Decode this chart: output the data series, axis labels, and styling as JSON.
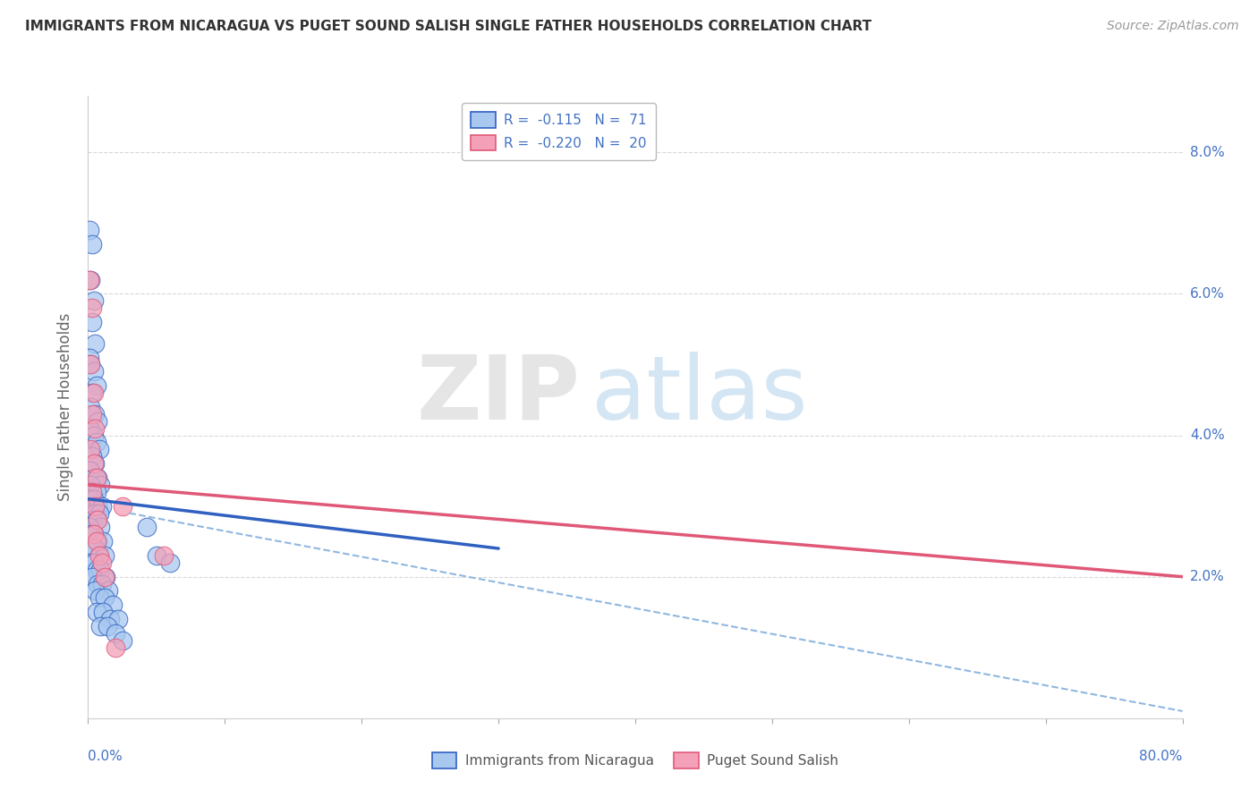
{
  "title": "IMMIGRANTS FROM NICARAGUA VS PUGET SOUND SALISH SINGLE FATHER HOUSEHOLDS CORRELATION CHART",
  "source": "Source: ZipAtlas.com",
  "ylabel": "Single Father Households",
  "legend_entry1": "R =  -0.115   N =  71",
  "legend_entry2": "R =  -0.220   N =  20",
  "legend_label1": "Immigrants from Nicaragua",
  "legend_label2": "Puget Sound Salish",
  "blue_color": "#A8C8F0",
  "pink_color": "#F4A0B8",
  "blue_line_color": "#3060C0",
  "pink_line_color": "#E05878",
  "dashed_line_color": "#90B8E0",
  "watermark_zip": "ZIP",
  "watermark_atlas": "atlas",
  "blue_dots": [
    [
      0.001,
      0.069
    ],
    [
      0.003,
      0.067
    ],
    [
      0.002,
      0.062
    ],
    [
      0.004,
      0.059
    ],
    [
      0.003,
      0.056
    ],
    [
      0.005,
      0.053
    ],
    [
      0.001,
      0.051
    ],
    [
      0.002,
      0.05
    ],
    [
      0.004,
      0.049
    ],
    [
      0.006,
      0.047
    ],
    [
      0.003,
      0.046
    ],
    [
      0.002,
      0.044
    ],
    [
      0.005,
      0.043
    ],
    [
      0.007,
      0.042
    ],
    [
      0.001,
      0.041
    ],
    [
      0.004,
      0.04
    ],
    [
      0.006,
      0.039
    ],
    [
      0.008,
      0.038
    ],
    [
      0.003,
      0.037
    ],
    [
      0.005,
      0.036
    ],
    [
      0.001,
      0.035
    ],
    [
      0.002,
      0.035
    ],
    [
      0.004,
      0.034
    ],
    [
      0.007,
      0.034
    ],
    [
      0.009,
      0.033
    ],
    [
      0.002,
      0.033
    ],
    [
      0.003,
      0.032
    ],
    [
      0.006,
      0.032
    ],
    [
      0.001,
      0.031
    ],
    [
      0.004,
      0.031
    ],
    [
      0.007,
      0.03
    ],
    [
      0.01,
      0.03
    ],
    [
      0.002,
      0.029
    ],
    [
      0.005,
      0.029
    ],
    [
      0.008,
      0.029
    ],
    [
      0.003,
      0.028
    ],
    [
      0.006,
      0.028
    ],
    [
      0.009,
      0.027
    ],
    [
      0.001,
      0.027
    ],
    [
      0.002,
      0.026
    ],
    [
      0.004,
      0.026
    ],
    [
      0.007,
      0.025
    ],
    [
      0.011,
      0.025
    ],
    [
      0.003,
      0.024
    ],
    [
      0.005,
      0.024
    ],
    [
      0.008,
      0.023
    ],
    [
      0.012,
      0.023
    ],
    [
      0.002,
      0.022
    ],
    [
      0.004,
      0.022
    ],
    [
      0.006,
      0.021
    ],
    [
      0.009,
      0.021
    ],
    [
      0.013,
      0.02
    ],
    [
      0.003,
      0.02
    ],
    [
      0.007,
      0.019
    ],
    [
      0.01,
      0.019
    ],
    [
      0.015,
      0.018
    ],
    [
      0.005,
      0.018
    ],
    [
      0.008,
      0.017
    ],
    [
      0.012,
      0.017
    ],
    [
      0.018,
      0.016
    ],
    [
      0.006,
      0.015
    ],
    [
      0.011,
      0.015
    ],
    [
      0.016,
      0.014
    ],
    [
      0.022,
      0.014
    ],
    [
      0.009,
      0.013
    ],
    [
      0.014,
      0.013
    ],
    [
      0.02,
      0.012
    ],
    [
      0.025,
      0.011
    ],
    [
      0.043,
      0.027
    ],
    [
      0.05,
      0.023
    ],
    [
      0.06,
      0.022
    ]
  ],
  "pink_dots": [
    [
      0.001,
      0.062
    ],
    [
      0.003,
      0.058
    ],
    [
      0.002,
      0.05
    ],
    [
      0.004,
      0.046
    ],
    [
      0.003,
      0.043
    ],
    [
      0.005,
      0.041
    ],
    [
      0.002,
      0.038
    ],
    [
      0.004,
      0.036
    ],
    [
      0.006,
      0.034
    ],
    [
      0.003,
      0.032
    ],
    [
      0.005,
      0.03
    ],
    [
      0.007,
      0.028
    ],
    [
      0.004,
      0.026
    ],
    [
      0.006,
      0.025
    ],
    [
      0.008,
      0.023
    ],
    [
      0.01,
      0.022
    ],
    [
      0.012,
      0.02
    ],
    [
      0.025,
      0.03
    ],
    [
      0.055,
      0.023
    ],
    [
      0.02,
      0.01
    ]
  ],
  "xlim": [
    0.0,
    0.8
  ],
  "ylim": [
    0.0,
    0.088
  ],
  "blue_line": {
    "x0": 0.0,
    "y0": 0.031,
    "x1": 0.3,
    "y1": 0.024
  },
  "pink_line": {
    "x0": 0.0,
    "y0": 0.033,
    "x1": 0.8,
    "y1": 0.02
  },
  "dashed_line": {
    "x0": 0.03,
    "y0": 0.029,
    "x1": 0.8,
    "y1": 0.001
  },
  "background_color": "#FFFFFF",
  "grid_color": "#D8D8D8"
}
